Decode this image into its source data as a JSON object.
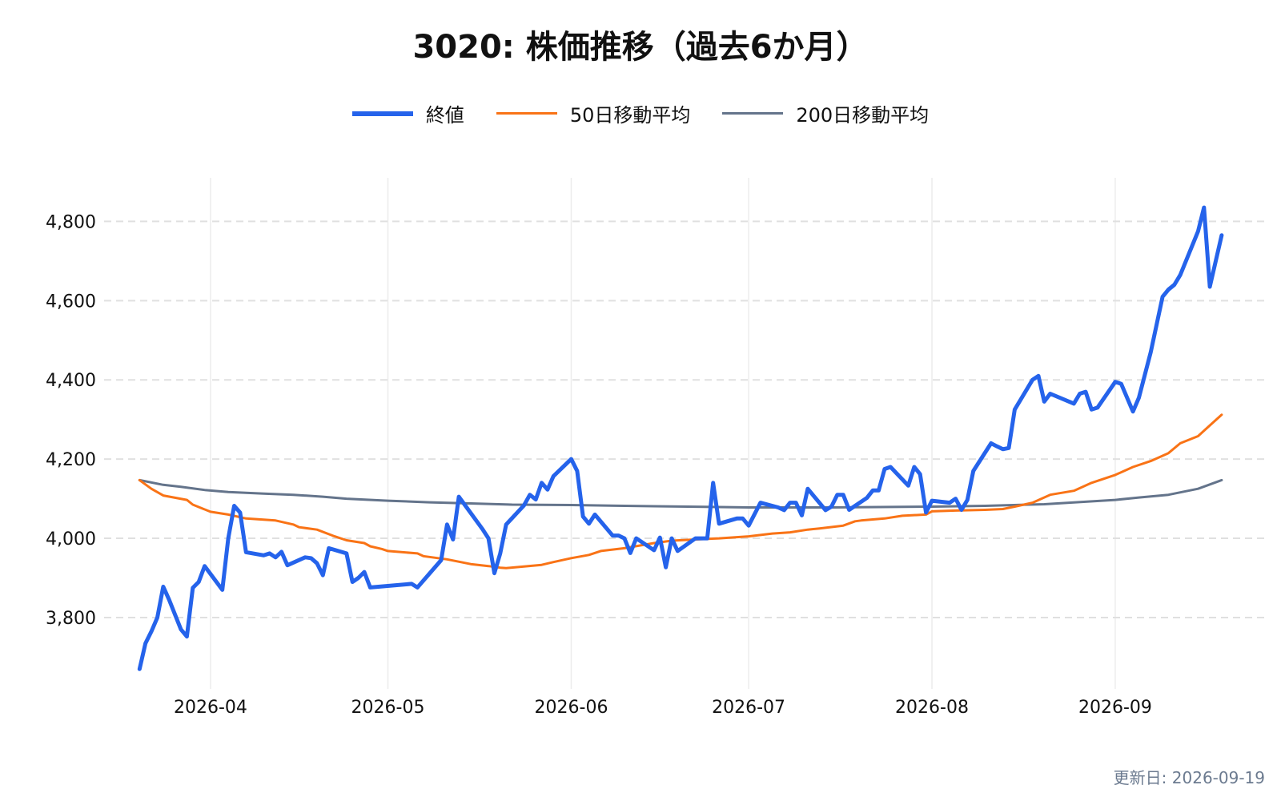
{
  "colors": {
    "close": "#2563eb",
    "ma50": "#f97316",
    "ma200": "#64748b",
    "grid": "#e0e0e0",
    "footer": "#6b7a8f"
  },
  "footer": {
    "updated": "更新日: 2026-09-19"
  },
  "chart_data": {
    "type": "line",
    "title": "3020: 株価推移（過去6か月）",
    "xlabel": "",
    "ylabel": "",
    "legend_position": "top-center",
    "grid": true,
    "x_type": "date",
    "xlim": [
      "2026-03-14",
      "2026-09-27"
    ],
    "ylim": [
      3620,
      4910
    ],
    "y_ticks": [
      3800,
      4000,
      4200,
      4400,
      4600,
      4800
    ],
    "y_tick_labels": [
      "3,800",
      "4,000",
      "4,200",
      "4,400",
      "4,600",
      "4,800"
    ],
    "x_ticks": [
      "2026-04-01",
      "2026-05-01",
      "2026-06-01",
      "2026-07-01",
      "2026-08-01",
      "2026-09-01"
    ],
    "x_tick_labels": [
      "2026-04",
      "2026-05",
      "2026-06",
      "2026-07",
      "2026-08",
      "2026-09"
    ],
    "series": [
      {
        "name": "終値",
        "color": "#2563eb",
        "points": [
          [
            "2026-03-20",
            3670
          ],
          [
            "2026-03-21",
            3735
          ],
          [
            "2026-03-22",
            3765
          ],
          [
            "2026-03-23",
            3800
          ],
          [
            "2026-03-24",
            3878
          ],
          [
            "2026-03-25",
            3845
          ],
          [
            "2026-03-27",
            3770
          ],
          [
            "2026-03-28",
            3752
          ],
          [
            "2026-03-29",
            3875
          ],
          [
            "2026-03-30",
            3890
          ],
          [
            "2026-03-31",
            3930
          ],
          [
            "2026-04-03",
            3870
          ],
          [
            "2026-04-04",
            4000
          ],
          [
            "2026-04-05",
            4082
          ],
          [
            "2026-04-06",
            4065
          ],
          [
            "2026-04-07",
            3965
          ],
          [
            "2026-04-10",
            3957
          ],
          [
            "2026-04-11",
            3962
          ],
          [
            "2026-04-12",
            3952
          ],
          [
            "2026-04-13",
            3966
          ],
          [
            "2026-04-14",
            3932
          ],
          [
            "2026-04-17",
            3952
          ],
          [
            "2026-04-18",
            3950
          ],
          [
            "2026-04-19",
            3937
          ],
          [
            "2026-04-20",
            3907
          ],
          [
            "2026-04-21",
            3975
          ],
          [
            "2026-04-24",
            3962
          ],
          [
            "2026-04-25",
            3890
          ],
          [
            "2026-04-26",
            3900
          ],
          [
            "2026-04-27",
            3915
          ],
          [
            "2026-04-28",
            3876
          ],
          [
            "2026-05-05",
            3885
          ],
          [
            "2026-05-06",
            3876
          ],
          [
            "2026-05-10",
            3945
          ],
          [
            "2026-05-11",
            4035
          ],
          [
            "2026-05-12",
            3997
          ],
          [
            "2026-05-13",
            4105
          ],
          [
            "2026-05-17",
            4023
          ],
          [
            "2026-05-18",
            4000
          ],
          [
            "2026-05-19",
            3912
          ],
          [
            "2026-05-20",
            3962
          ],
          [
            "2026-05-21",
            4035
          ],
          [
            "2026-05-24",
            4083
          ],
          [
            "2026-05-25",
            4110
          ],
          [
            "2026-05-26",
            4098
          ],
          [
            "2026-05-27",
            4140
          ],
          [
            "2026-05-28",
            4123
          ],
          [
            "2026-05-29",
            4157
          ],
          [
            "2026-06-01",
            4200
          ],
          [
            "2026-06-02",
            4170
          ],
          [
            "2026-06-03",
            4055
          ],
          [
            "2026-06-04",
            4037
          ],
          [
            "2026-06-05",
            4060
          ],
          [
            "2026-06-08",
            4007
          ],
          [
            "2026-06-09",
            4007
          ],
          [
            "2026-06-10",
            4000
          ],
          [
            "2026-06-11",
            3963
          ],
          [
            "2026-06-12",
            4000
          ],
          [
            "2026-06-15",
            3970
          ],
          [
            "2026-06-16",
            4002
          ],
          [
            "2026-06-17",
            3927
          ],
          [
            "2026-06-18",
            4000
          ],
          [
            "2026-06-19",
            3968
          ],
          [
            "2026-06-22",
            4000
          ],
          [
            "2026-06-23",
            4000
          ],
          [
            "2026-06-24",
            4000
          ],
          [
            "2026-06-25",
            4140
          ],
          [
            "2026-06-26",
            4037
          ],
          [
            "2026-06-29",
            4050
          ],
          [
            "2026-06-30",
            4050
          ],
          [
            "2026-07-01",
            4032
          ],
          [
            "2026-07-03",
            4090
          ],
          [
            "2026-07-06",
            4078
          ],
          [
            "2026-07-07",
            4071
          ],
          [
            "2026-07-08",
            4090
          ],
          [
            "2026-07-09",
            4090
          ],
          [
            "2026-07-10",
            4058
          ],
          [
            "2026-07-11",
            4125
          ],
          [
            "2026-07-14",
            4071
          ],
          [
            "2026-07-15",
            4080
          ],
          [
            "2026-07-16",
            4110
          ],
          [
            "2026-07-17",
            4110
          ],
          [
            "2026-07-18",
            4072
          ],
          [
            "2026-07-21",
            4102
          ],
          [
            "2026-07-22",
            4121
          ],
          [
            "2026-07-23",
            4121
          ],
          [
            "2026-07-24",
            4175
          ],
          [
            "2026-07-25",
            4180
          ],
          [
            "2026-07-28",
            4133
          ],
          [
            "2026-07-29",
            4180
          ],
          [
            "2026-07-30",
            4162
          ],
          [
            "2026-07-31",
            4065
          ],
          [
            "2026-08-01",
            4095
          ],
          [
            "2026-08-04",
            4090
          ],
          [
            "2026-08-05",
            4100
          ],
          [
            "2026-08-06",
            4072
          ],
          [
            "2026-08-07",
            4097
          ],
          [
            "2026-08-08",
            4170
          ],
          [
            "2026-08-11",
            4240
          ],
          [
            "2026-08-12",
            4232
          ],
          [
            "2026-08-13",
            4225
          ],
          [
            "2026-08-14",
            4228
          ],
          [
            "2026-08-15",
            4325
          ],
          [
            "2026-08-18",
            4400
          ],
          [
            "2026-08-19",
            4410
          ],
          [
            "2026-08-20",
            4345
          ],
          [
            "2026-08-21",
            4365
          ],
          [
            "2026-08-25",
            4340
          ],
          [
            "2026-08-26",
            4365
          ],
          [
            "2026-08-27",
            4370
          ],
          [
            "2026-08-28",
            4325
          ],
          [
            "2026-08-29",
            4330
          ],
          [
            "2026-09-01",
            4395
          ],
          [
            "2026-09-02",
            4390
          ],
          [
            "2026-09-04",
            4320
          ],
          [
            "2026-09-05",
            4355
          ],
          [
            "2026-09-07",
            4470
          ],
          [
            "2026-09-08",
            4540
          ],
          [
            "2026-09-09",
            4610
          ],
          [
            "2026-09-10",
            4628
          ],
          [
            "2026-09-11",
            4640
          ],
          [
            "2026-09-12",
            4665
          ],
          [
            "2026-09-15",
            4775
          ],
          [
            "2026-09-16",
            4835
          ],
          [
            "2026-09-17",
            4635
          ],
          [
            "2026-09-19",
            4765
          ]
        ]
      },
      {
        "name": "50日移動平均",
        "color": "#f97316",
        "points": [
          [
            "2026-03-20",
            4147
          ],
          [
            "2026-03-22",
            4125
          ],
          [
            "2026-03-24",
            4108
          ],
          [
            "2026-03-28",
            4097
          ],
          [
            "2026-03-29",
            4085
          ],
          [
            "2026-04-01",
            4067
          ],
          [
            "2026-04-04",
            4060
          ],
          [
            "2026-04-07",
            4050
          ],
          [
            "2026-04-12",
            4045
          ],
          [
            "2026-04-15",
            4035
          ],
          [
            "2026-04-16",
            4028
          ],
          [
            "2026-04-19",
            4022
          ],
          [
            "2026-04-22",
            4005
          ],
          [
            "2026-04-24",
            3995
          ],
          [
            "2026-04-27",
            3988
          ],
          [
            "2026-04-28",
            3980
          ],
          [
            "2026-04-30",
            3973
          ],
          [
            "2026-05-01",
            3968
          ],
          [
            "2026-05-06",
            3962
          ],
          [
            "2026-05-07",
            3955
          ],
          [
            "2026-05-11",
            3947
          ],
          [
            "2026-05-15",
            3935
          ],
          [
            "2026-05-18",
            3930
          ],
          [
            "2026-05-20",
            3926
          ],
          [
            "2026-05-21",
            3925
          ],
          [
            "2026-05-24",
            3929
          ],
          [
            "2026-05-27",
            3933
          ],
          [
            "2026-05-29",
            3940
          ],
          [
            "2026-06-01",
            3950
          ],
          [
            "2026-06-04",
            3958
          ],
          [
            "2026-06-06",
            3968
          ],
          [
            "2026-06-10",
            3975
          ],
          [
            "2026-06-15",
            3988
          ],
          [
            "2026-06-18",
            3994
          ],
          [
            "2026-06-23",
            3998
          ],
          [
            "2026-06-26",
            4000
          ],
          [
            "2026-06-29",
            4003
          ],
          [
            "2026-07-01",
            4005
          ],
          [
            "2026-07-05",
            4012
          ],
          [
            "2026-07-08",
            4015
          ],
          [
            "2026-07-11",
            4022
          ],
          [
            "2026-07-13",
            4025
          ],
          [
            "2026-07-17",
            4032
          ],
          [
            "2026-07-19",
            4043
          ],
          [
            "2026-07-20",
            4045
          ],
          [
            "2026-07-24",
            4050
          ],
          [
            "2026-07-27",
            4057
          ],
          [
            "2026-07-31",
            4060
          ],
          [
            "2026-08-01",
            4068
          ],
          [
            "2026-08-05",
            4070
          ],
          [
            "2026-08-10",
            4072
          ],
          [
            "2026-08-13",
            4074
          ],
          [
            "2026-08-15",
            4080
          ],
          [
            "2026-08-18",
            4090
          ],
          [
            "2026-08-21",
            4110
          ],
          [
            "2026-08-25",
            4120
          ],
          [
            "2026-08-28",
            4140
          ],
          [
            "2026-09-01",
            4160
          ],
          [
            "2026-09-04",
            4180
          ],
          [
            "2026-09-07",
            4195
          ],
          [
            "2026-09-10",
            4215
          ],
          [
            "2026-09-12",
            4240
          ],
          [
            "2026-09-15",
            4258
          ],
          [
            "2026-09-17",
            4285
          ],
          [
            "2026-09-19",
            4312
          ]
        ]
      },
      {
        "name": "200日移動平均",
        "color": "#64748b",
        "points": [
          [
            "2026-03-20",
            4147
          ],
          [
            "2026-03-24",
            4135
          ],
          [
            "2026-03-27",
            4130
          ],
          [
            "2026-03-31",
            4122
          ],
          [
            "2026-04-04",
            4117
          ],
          [
            "2026-04-10",
            4113
          ],
          [
            "2026-04-15",
            4110
          ],
          [
            "2026-04-20",
            4105
          ],
          [
            "2026-04-24",
            4100
          ],
          [
            "2026-05-01",
            4095
          ],
          [
            "2026-05-08",
            4091
          ],
          [
            "2026-05-15",
            4088
          ],
          [
            "2026-05-22",
            4085
          ],
          [
            "2026-06-01",
            4084
          ],
          [
            "2026-06-15",
            4081
          ],
          [
            "2026-07-01",
            4078
          ],
          [
            "2026-07-15",
            4078
          ],
          [
            "2026-08-01",
            4080
          ],
          [
            "2026-08-10",
            4082
          ],
          [
            "2026-08-20",
            4086
          ],
          [
            "2026-09-01",
            4097
          ],
          [
            "2026-09-05",
            4103
          ],
          [
            "2026-09-10",
            4110
          ],
          [
            "2026-09-15",
            4125
          ],
          [
            "2026-09-19",
            4147
          ]
        ]
      }
    ]
  }
}
